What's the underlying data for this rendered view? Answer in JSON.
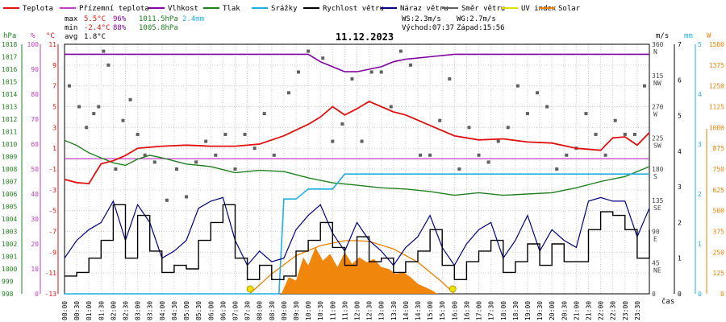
{
  "chart_data": {
    "type": "line",
    "title": "11.12.2023",
    "xlabel": "čas",
    "legend": [
      {
        "name": "Teplota",
        "color": "#e01010"
      },
      {
        "name": "Přízemní teplota",
        "color": "#c040c0"
      },
      {
        "name": "Vlhkost",
        "color": "#8000a0"
      },
      {
        "name": "Tlak",
        "color": "#208020"
      },
      {
        "name": "Srážky",
        "color": "#20b0e0"
      },
      {
        "name": "Rychlost větru",
        "color": "#000000"
      },
      {
        "name": "Náraz větru",
        "color": "#000080"
      },
      {
        "name": "Směr větru",
        "color": "#606060"
      },
      {
        "name": "UV index",
        "color": "#e0e000"
      },
      {
        "name": "Solar",
        "color": "#f08000"
      }
    ],
    "stats": {
      "max": {
        "label": "max",
        "temp": "5.5°C",
        "hum": "96%",
        "press": "1011.5hPa",
        "rain": "2.4mm"
      },
      "min": {
        "label": "min",
        "temp": "-2.4°C",
        "hum": "88%",
        "press": "1005.8hPa"
      },
      "avg": {
        "label": "avg",
        "temp": "1.8°C"
      },
      "ws": "WS:2.3m/s",
      "wg": "WG:2.7m/s",
      "sunrise": "Východ:07:37",
      "sunset": "Západ:15:56"
    },
    "axes": {
      "press_unit": "hPa",
      "hum_unit": "%",
      "temp_unit": "°C",
      "wind_unit": "m/s",
      "rain_unit": "mm",
      "solar_unit": "W",
      "press_ticks": [
        "1018",
        "1017",
        "1016",
        "1015",
        "1014",
        "1013",
        "1012",
        "1011",
        "1010",
        "1009",
        "1008",
        "1007",
        "1006",
        "1005",
        "1004",
        "1003",
        "1002",
        "1001",
        "1000",
        "999",
        "998"
      ],
      "hum_ticks": [
        "100",
        "90",
        "80",
        "70",
        "60",
        "50",
        "40",
        "30",
        "20",
        "10",
        "0"
      ],
      "temp_ticks": [
        "11",
        "9",
        "7",
        "5",
        "3",
        "1",
        "-1",
        "-3",
        "-5",
        "-7",
        "-9",
        "-11",
        "-13"
      ],
      "dir_ticks": [
        "360 N",
        "315 NW",
        "270 W",
        "225 SW",
        "180 S",
        "135 SE",
        "90 E",
        "45 NE",
        "0"
      ],
      "wind_ticks": [
        "7",
        "6",
        "5",
        "4",
        "3",
        "2",
        "1",
        "0"
      ],
      "rain_ticks": [
        "5",
        "4",
        "3",
        "2",
        "1",
        "0"
      ],
      "solar_ticks": [
        "1500",
        "1375",
        "1250",
        "1125",
        "1000",
        "875",
        "750",
        "625",
        "500",
        "375",
        "250",
        "125",
        "0"
      ],
      "temp_range": [
        -13,
        11
      ],
      "wind_range": [
        0,
        7
      ],
      "rain_range": [
        0,
        5
      ],
      "solar_range": [
        0,
        1500
      ],
      "hum_range": [
        0,
        100
      ],
      "press_range": [
        998,
        1018
      ],
      "dir_range": [
        0,
        360
      ]
    },
    "x_ticks": [
      "00:00",
      "00:30",
      "01:00",
      "01:30",
      "02:00",
      "02:30",
      "03:00",
      "03:30",
      "04:00",
      "04:30",
      "05:00",
      "05:30",
      "06:00",
      "06:30",
      "07:00",
      "07:30",
      "08:00",
      "08:30",
      "09:00",
      "09:30",
      "10:00",
      "10:30",
      "11:00",
      "11:30",
      "12:00",
      "12:30",
      "13:00",
      "13:30",
      "14:00",
      "14:30",
      "15:00",
      "15:30",
      "16:00",
      "16:30",
      "17:00",
      "17:30",
      "18:00",
      "18:30",
      "19:00",
      "19:30",
      "20:00",
      "20:30",
      "21:00",
      "21:30",
      "22:00",
      "22:30",
      "23:00",
      "23:30"
    ],
    "series": [
      {
        "name": "Teplota",
        "unit": "temp",
        "color": "#e01010",
        "x": [
          0,
          0.5,
          1,
          1.5,
          2,
          2.5,
          3,
          3.5,
          4,
          5,
          6,
          7,
          8,
          9,
          10,
          10.5,
          11,
          11.5,
          12,
          12.5,
          13,
          13.5,
          14,
          15,
          16,
          17,
          18,
          19,
          20,
          21,
          22,
          22.5,
          23,
          23.5,
          24
        ],
        "y": [
          -2,
          -2.3,
          -2.4,
          -0.5,
          -0.2,
          0.3,
          1,
          1.1,
          1.2,
          1.3,
          1.2,
          1.2,
          1.4,
          2.2,
          3.3,
          4.0,
          5.0,
          4.2,
          4.8,
          5.5,
          5.0,
          4.5,
          4.2,
          3.2,
          2.2,
          1.8,
          1.9,
          1.6,
          1.5,
          1.0,
          0.8,
          2.0,
          2.1,
          1.3,
          2.5
        ]
      },
      {
        "name": "Přízemní teplota",
        "unit": "temp",
        "color": "#c040c0",
        "x": [
          0,
          24
        ],
        "y": [
          0,
          0
        ]
      },
      {
        "name": "Vlhkost",
        "unit": "hum",
        "color": "#8000a0",
        "x": [
          0,
          8,
          10,
          10.5,
          11,
          11.5,
          12,
          12.5,
          13,
          13.5,
          14,
          15,
          16,
          18,
          20,
          22,
          24
        ],
        "y": [
          96,
          96,
          96,
          93,
          91,
          89,
          89,
          90,
          91,
          93,
          94,
          95,
          96,
          96,
          96,
          96,
          96
        ]
      },
      {
        "name": "Tlak",
        "unit": "press",
        "color": "#208020",
        "x": [
          0,
          0.5,
          1,
          1.5,
          2,
          2.5,
          3,
          3.5,
          4,
          5,
          6,
          7,
          8,
          9,
          10,
          11,
          12,
          13,
          14,
          15,
          16,
          17,
          18,
          19,
          20,
          21,
          22,
          23,
          23.5,
          24
        ],
        "y": [
          1010.3,
          1009.9,
          1009.3,
          1008.9,
          1008.5,
          1008.3,
          1008.8,
          1009.1,
          1008.9,
          1008.4,
          1008.2,
          1007.7,
          1007.9,
          1007.8,
          1007.3,
          1006.9,
          1006.7,
          1006.5,
          1006.4,
          1006.2,
          1005.9,
          1006.1,
          1005.9,
          1006.0,
          1006.1,
          1006.5,
          1007.0,
          1007.4,
          1007.8,
          1008.2
        ]
      },
      {
        "name": "Srážky",
        "unit": "rain",
        "color": "#20b0e0",
        "x": [
          0,
          8.8,
          9,
          9.5,
          10,
          11,
          11.5,
          12,
          24
        ],
        "y": [
          0,
          0,
          1.9,
          1.9,
          2.1,
          2.1,
          2.4,
          2.4,
          2.4
        ]
      },
      {
        "name": "Rychlost větru",
        "unit": "wind",
        "color": "#000000",
        "x": [
          0,
          0.5,
          1,
          1.5,
          2,
          2.5,
          3,
          3.5,
          4,
          4.5,
          5,
          5.5,
          6,
          6.5,
          7,
          7.5,
          8,
          8.5,
          9,
          9.5,
          10,
          10.5,
          11,
          11.5,
          12,
          12.5,
          13,
          13.5,
          14,
          14.5,
          15,
          15.5,
          16,
          16.5,
          17,
          17.5,
          18,
          18.5,
          19,
          19.5,
          20,
          20.5,
          21,
          21.5,
          22,
          22.5,
          23,
          23.5,
          24
        ],
        "y": [
          0.5,
          0.6,
          1.0,
          1.5,
          2.5,
          1.0,
          2.2,
          1.2,
          0.6,
          0.8,
          0.7,
          1.5,
          2.0,
          2.5,
          1.0,
          0.4,
          0.8,
          0.4,
          0.5,
          1.2,
          1.5,
          2.0,
          1.3,
          0.8,
          1.6,
          0.9,
          1.0,
          0.6,
          0.9,
          1.2,
          1.8,
          0.8,
          0.4,
          0.9,
          1.2,
          1.5,
          0.6,
          0.9,
          1.4,
          0.8,
          1.4,
          0.9,
          0.9,
          1.8,
          2.3,
          2.2,
          1.8,
          1.0,
          1.8
        ]
      },
      {
        "name": "Náraz větru",
        "unit": "wind",
        "color": "#000080",
        "x": [
          0,
          0.5,
          1,
          1.5,
          2,
          2.5,
          3,
          3.5,
          4,
          4.5,
          5,
          5.5,
          6,
          6.5,
          7,
          7.5,
          8,
          8.5,
          9,
          9.5,
          10,
          10.5,
          11,
          11.5,
          12,
          12.5,
          13,
          13.5,
          14,
          14.5,
          15,
          15.5,
          16,
          16.5,
          17,
          17.5,
          18,
          18.5,
          19,
          19.5,
          20,
          20.5,
          21,
          21.5,
          22,
          22.5,
          23,
          23.5,
          24
        ],
        "y": [
          1.0,
          1.5,
          1.8,
          2.0,
          2.6,
          1.5,
          2.5,
          2.0,
          1.0,
          1.2,
          1.5,
          2.4,
          2.6,
          2.7,
          1.5,
          0.8,
          1.2,
          0.9,
          1.0,
          1.8,
          2.2,
          2.5,
          1.7,
          1.2,
          2.0,
          1.5,
          1.2,
          0.8,
          1.3,
          1.6,
          2.2,
          1.3,
          0.8,
          1.4,
          1.8,
          2.0,
          1.0,
          1.5,
          2.2,
          1.2,
          1.8,
          1.5,
          1.3,
          2.6,
          2.7,
          2.6,
          2.6,
          1.6,
          2.4
        ]
      },
      {
        "name": "Směr větru",
        "unit": "dir",
        "type": "scatter",
        "color": "#606060",
        "x": [
          0.2,
          0.6,
          0.9,
          1.2,
          1.4,
          1.6,
          1.8,
          2.1,
          2.4,
          2.7,
          3.0,
          3.3,
          3.7,
          4.2,
          4.6,
          5.0,
          5.4,
          5.8,
          6.2,
          6.6,
          7.0,
          7.4,
          7.8,
          8.2,
          8.6,
          9.2,
          9.6,
          10.0,
          10.6,
          11.0,
          11.4,
          11.8,
          12.2,
          12.6,
          13.0,
          13.4,
          13.8,
          14.2,
          14.6,
          15.0,
          15.4,
          15.8,
          16.2,
          16.6,
          17.0,
          17.4,
          17.8,
          18.2,
          18.6,
          19.0,
          19.4,
          19.8,
          20.2,
          20.6,
          21.0,
          21.4,
          21.8,
          22.2,
          22.6,
          23.0,
          23.4,
          23.8
        ],
        "y": [
          300,
          270,
          240,
          260,
          270,
          350,
          330,
          180,
          250,
          280,
          230,
          200,
          190,
          135,
          180,
          140,
          190,
          220,
          200,
          230,
          180,
          230,
          210,
          260,
          200,
          290,
          320,
          350,
          340,
          220,
          245,
          310,
          220,
          320,
          320,
          270,
          350,
          330,
          200,
          200,
          250,
          310,
          180,
          240,
          200,
          190,
          220,
          240,
          300,
          260,
          290,
          270,
          180,
          200,
          210,
          260,
          230,
          200,
          250,
          230,
          230,
          300
        ]
      },
      {
        "name": "Solar",
        "unit": "solar",
        "type": "area",
        "color": "#f08000",
        "x": [
          8.9,
          9.2,
          9.5,
          9.8,
          10.0,
          10.3,
          10.6,
          10.9,
          11.2,
          11.5,
          11.8,
          12.1,
          12.4,
          12.7,
          13.0,
          13.3,
          13.6,
          13.9,
          14.2,
          14.5,
          14.8,
          15.1,
          15.3
        ],
        "y": [
          0,
          100,
          80,
          220,
          170,
          280,
          200,
          240,
          160,
          250,
          180,
          220,
          190,
          210,
          160,
          150,
          120,
          130,
          100,
          60,
          40,
          20,
          0
        ]
      },
      {
        "name": "Solar max",
        "unit": "solar",
        "type": "curve",
        "color": "#f08000",
        "x": [
          7.6,
          8.5,
          9.5,
          10.5,
          11.5,
          12.0,
          12.5,
          13.5,
          14.5,
          15.5,
          16.0
        ],
        "y": [
          0,
          120,
          230,
          290,
          320,
          320,
          315,
          270,
          190,
          70,
          0
        ]
      }
    ],
    "sun_markers": {
      "sunrise": 7.62,
      "sunset": 15.93
    }
  }
}
